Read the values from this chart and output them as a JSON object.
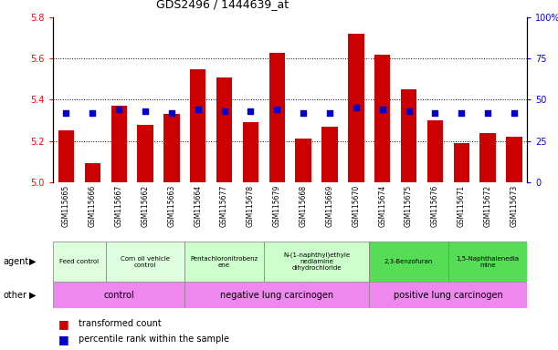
{
  "title": "GDS2496 / 1444639_at",
  "samples": [
    "GSM115665",
    "GSM115666",
    "GSM115667",
    "GSM115662",
    "GSM115663",
    "GSM115664",
    "GSM115677",
    "GSM115678",
    "GSM115679",
    "GSM115668",
    "GSM115669",
    "GSM115670",
    "GSM115674",
    "GSM115675",
    "GSM115676",
    "GSM115671",
    "GSM115672",
    "GSM115673"
  ],
  "bar_values": [
    5.25,
    5.09,
    5.37,
    5.28,
    5.33,
    5.55,
    5.51,
    5.29,
    5.63,
    5.21,
    5.27,
    5.72,
    5.62,
    5.45,
    5.3,
    5.19,
    5.24,
    5.22
  ],
  "dot_values": [
    42,
    42,
    44,
    43,
    42,
    44,
    43,
    43,
    44,
    42,
    42,
    45,
    44,
    43,
    42,
    42,
    42,
    42
  ],
  "bar_color": "#cc0000",
  "dot_color": "#0000cc",
  "ylim_left": [
    5.0,
    5.8
  ],
  "ylim_right": [
    0,
    100
  ],
  "yticks_left": [
    5.0,
    5.2,
    5.4,
    5.6,
    5.8
  ],
  "yticks_right": [
    0,
    25,
    50,
    75,
    100
  ],
  "ytick_labels_right": [
    "0",
    "25",
    "50",
    "75",
    "100%"
  ],
  "grid_values": [
    5.2,
    5.4,
    5.6
  ],
  "agent_groups": [
    {
      "label": "Feed control",
      "start": 0,
      "end": 2,
      "color": "#ccffcc"
    },
    {
      "label": "Corn oil vehicle\ncontrol",
      "start": 2,
      "end": 5,
      "color": "#ccffcc"
    },
    {
      "label": "Pentachloronitrobenz\nene",
      "start": 5,
      "end": 8,
      "color": "#aaffaa"
    },
    {
      "label": "N-(1-naphthyl)ethyle\nnediamine\ndihydrochloride",
      "start": 8,
      "end": 12,
      "color": "#aaffaa"
    },
    {
      "label": "2,3-Benzofuran",
      "start": 12,
      "end": 15,
      "color": "#55ee55"
    },
    {
      "label": "1,5-Naphthalenedia\nmine",
      "start": 15,
      "end": 18,
      "color": "#55ee55"
    }
  ],
  "other_groups": [
    {
      "label": "control",
      "start": 0,
      "end": 5,
      "color": "#ee99ee"
    },
    {
      "label": "negative lung carcinogen",
      "start": 5,
      "end": 12,
      "color": "#ee99ee"
    },
    {
      "label": "positive lung carcinogen",
      "start": 12,
      "end": 18,
      "color": "#ee99ee"
    }
  ],
  "agent_label": "agent",
  "other_label": "other",
  "legend_bar_label": "transformed count",
  "legend_dot_label": "percentile rank within the sample",
  "xtick_bg": "#d8d8d8",
  "agent_colors": [
    "#ddffdd",
    "#ddffdd",
    "#ccffcc",
    "#ccffcc",
    "#55ee55",
    "#55ee55"
  ],
  "other_color": "#ee88ee"
}
